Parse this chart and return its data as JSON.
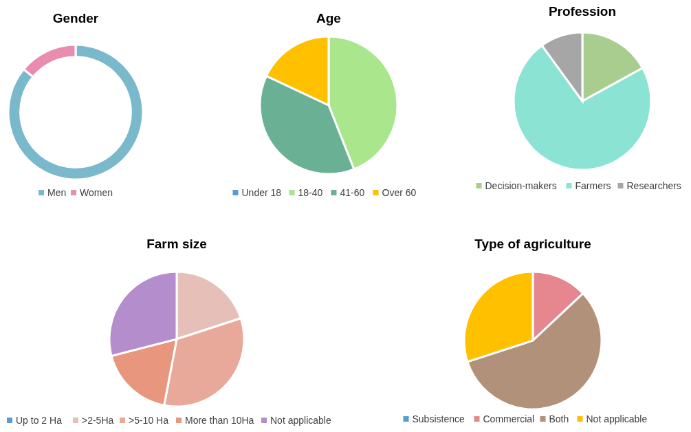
{
  "chart_data": [
    {
      "type": "donut",
      "title": "Gender",
      "categories": [
        "Men",
        "Women"
      ],
      "values": [
        86,
        14
      ],
      "colors": [
        "#7ab8cc",
        "#e88db0"
      ],
      "legend": "bottom"
    },
    {
      "type": "pie",
      "title": "Age",
      "categories": [
        "Under 18",
        "18-40",
        "41-60",
        "Over 60"
      ],
      "values": [
        0,
        44,
        38,
        18
      ],
      "colors": [
        "#5b9bd5",
        "#a9e68c",
        "#6ab095",
        "#ffc000"
      ],
      "legend": "bottom"
    },
    {
      "type": "pie",
      "title": "Profession",
      "categories": [
        "Decision-makers",
        "Farmers",
        "Researchers"
      ],
      "values": [
        17,
        73,
        10
      ],
      "colors": [
        "#a9cc8f",
        "#8ae3d3",
        "#a6a6a6"
      ],
      "legend": "bottom"
    },
    {
      "type": "pie",
      "title": "Farm size",
      "categories": [
        "Up to 2 Ha",
        ">2-5Ha",
        ">5-10 Ha",
        "More than 10Ha",
        "Not applicable"
      ],
      "values": [
        0,
        20,
        33,
        18,
        29
      ],
      "colors": [
        "#5b9bd5",
        "#e6c0b8",
        "#e8a99b",
        "#e8967e",
        "#b48ecc"
      ],
      "legend": "bottom"
    },
    {
      "type": "pie",
      "title": "Type of agriculture",
      "categories": [
        "Subsistence",
        "Commercial",
        "Both",
        "Not applicable"
      ],
      "values": [
        0,
        13,
        57,
        30
      ],
      "colors": [
        "#5b9bd5",
        "#e6868e",
        "#b2917a",
        "#ffc000"
      ],
      "legend": "bottom"
    }
  ]
}
